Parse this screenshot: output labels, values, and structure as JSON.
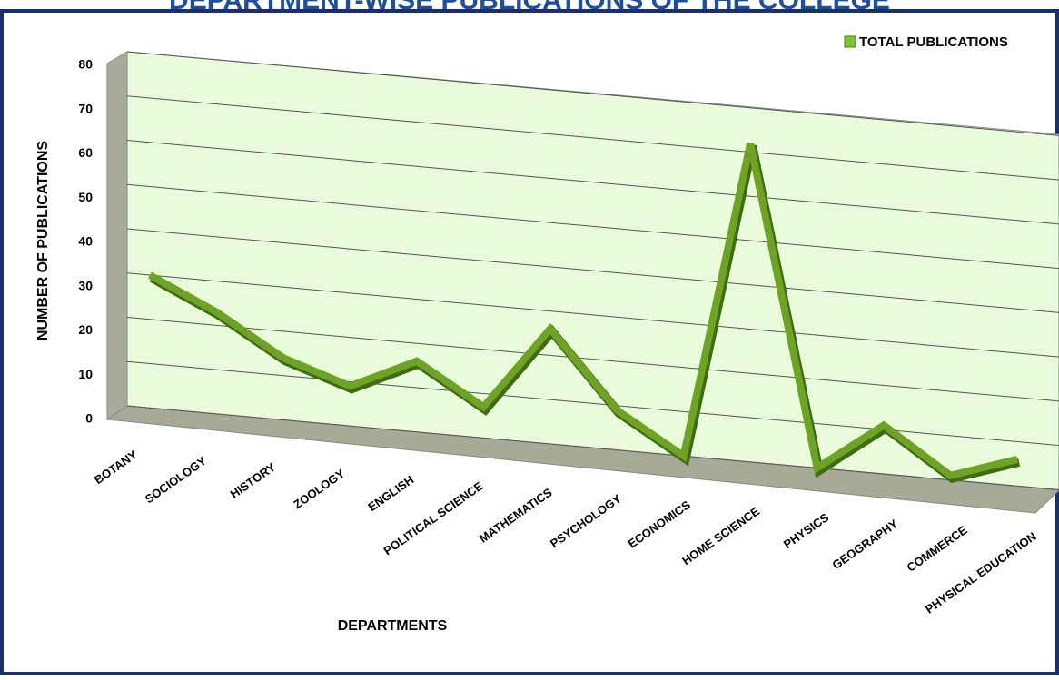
{
  "chart_data": {
    "type": "line",
    "title": "DEPARTMENT-WISE PUBLICATIONS OF THE COLLEGE",
    "x_label": "DEPARTMENTS",
    "y_label": "NUMBER OF PUBLICATIONS",
    "categories": [
      "BOTANY",
      "SOCIOLOGY",
      "HISTORY",
      "ZOOLOGY",
      "ENGLISH",
      "POLITICAL SCIENCE",
      "MATHEMATICS",
      "PSYCHOLOGY",
      "ECONOMICS",
      "HOME SCIENCE",
      "PHYSICS",
      "GEOGRAPHY",
      "COMMERCE",
      "PHYSICAL EDUCATION"
    ],
    "series": [
      {
        "name": "TOTAL PUBLICATIONS",
        "color": "#6ea326",
        "values": [
          30,
          23,
          14,
          9,
          16,
          7,
          26,
          9,
          0,
          72,
          0,
          11,
          1,
          6
        ]
      }
    ],
    "ylim": [
      0,
      80
    ],
    "yticks": [
      0,
      10,
      20,
      30,
      40,
      50,
      60,
      70,
      80
    ],
    "grid": true,
    "legend": "top-right"
  }
}
